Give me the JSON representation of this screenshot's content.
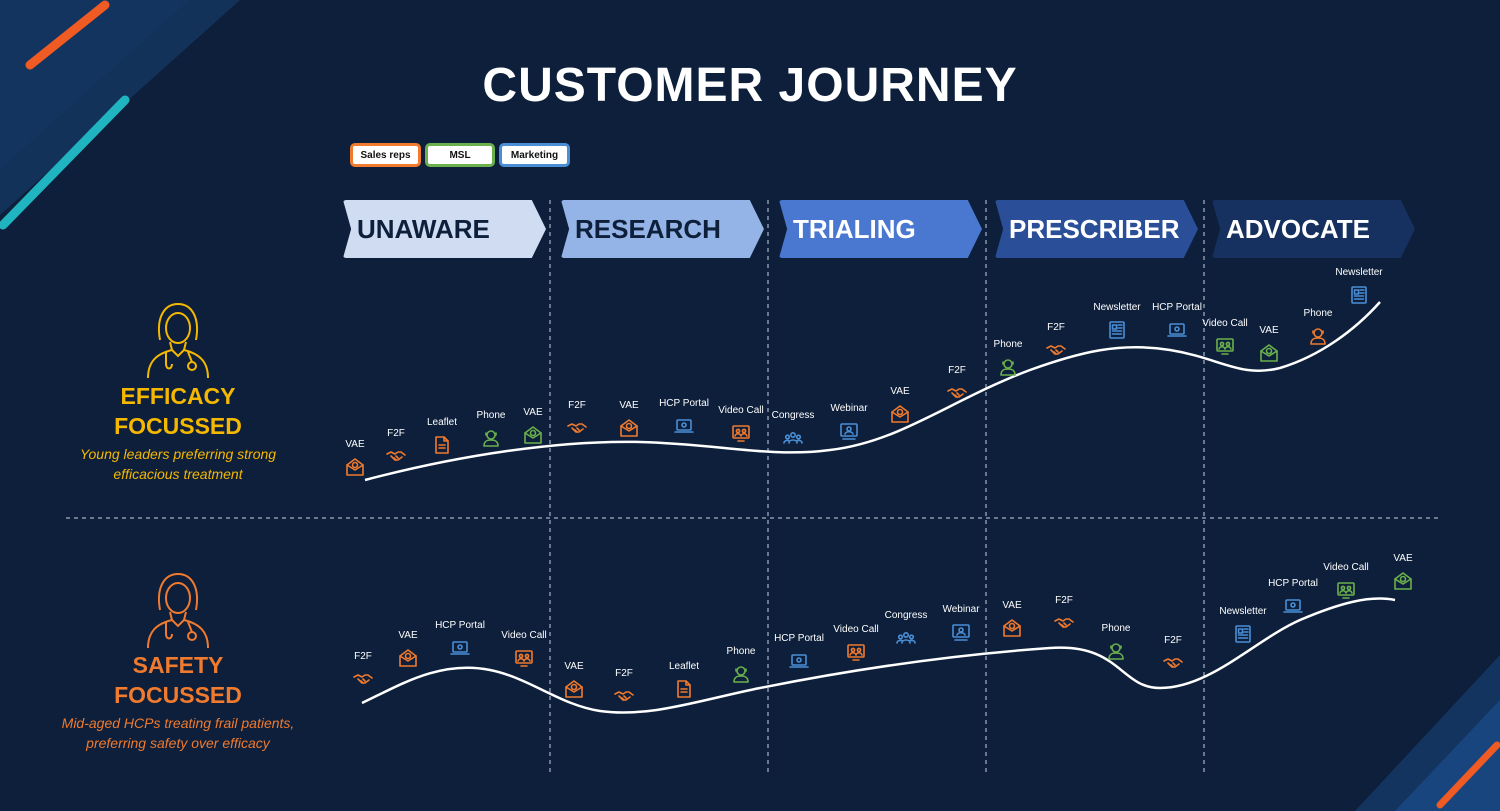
{
  "title": "CUSTOMER JOURNEY",
  "colors": {
    "background": "#0d1f3a",
    "sales_reps": "#f07a2e",
    "msl": "#6ab04c",
    "marketing": "#4a8fd6",
    "efficacy": "#f5b800",
    "safety": "#f07a2e",
    "accent_orange": "#f05a23",
    "accent_teal": "#20b3c0"
  },
  "legend": [
    {
      "label": "Sales reps",
      "color": "#f07a2e"
    },
    {
      "label": "MSL",
      "color": "#6ab04c"
    },
    {
      "label": "Marketing",
      "color": "#4a8fd6"
    }
  ],
  "stages": [
    {
      "label": "UNAWARE",
      "fill": "#cfdcf2",
      "text_color": "#0d1f3a"
    },
    {
      "label": "RESEARCH",
      "fill": "#94b3e6",
      "text_color": "#0d1f3a"
    },
    {
      "label": "TRIALING",
      "fill": "#4a78d0",
      "text_color": "#ffffff"
    },
    {
      "label": "PRESCRIBER",
      "fill": "#2a4f98",
      "text_color": "#ffffff"
    },
    {
      "label": "ADVOCATE",
      "fill": "#16315f",
      "text_color": "#ffffff"
    }
  ],
  "personas": [
    {
      "name_line1": "EFFICACY",
      "name_line2": "FOCUSSED",
      "desc_line1": "Young leaders preferring strong",
      "desc_line2": "efficacious treatment",
      "color": "#f5b800",
      "avatar_icon": "doctor-icon"
    },
    {
      "name_line1": "SAFETY",
      "name_line2": "FOCUSSED",
      "desc_line1": "Mid-aged HCPs treating frail patients,",
      "desc_line2": "preferring safety over efficacy",
      "color": "#f07a2e",
      "avatar_icon": "doctor-icon"
    }
  ],
  "journeys": [
    {
      "persona": "efficacy",
      "touchpoints": [
        {
          "label": "VAE",
          "channel": "sales_reps",
          "icon": "email-icon"
        },
        {
          "label": "F2F",
          "channel": "sales_reps",
          "icon": "handshake-icon"
        },
        {
          "label": "Leaflet",
          "channel": "sales_reps",
          "icon": "document-icon"
        },
        {
          "label": "Phone",
          "channel": "msl",
          "icon": "phone-agent-icon"
        },
        {
          "label": "VAE",
          "channel": "msl",
          "icon": "email-icon"
        },
        {
          "label": "F2F",
          "channel": "sales_reps",
          "icon": "handshake-icon"
        },
        {
          "label": "VAE",
          "channel": "sales_reps",
          "icon": "email-icon"
        },
        {
          "label": "HCP Portal",
          "channel": "marketing",
          "icon": "laptop-icon"
        },
        {
          "label": "Video Call",
          "channel": "sales_reps",
          "icon": "video-call-icon"
        },
        {
          "label": "Congress",
          "channel": "marketing",
          "icon": "group-icon"
        },
        {
          "label": "Webinar",
          "channel": "marketing",
          "icon": "webinar-icon"
        },
        {
          "label": "VAE",
          "channel": "sales_reps",
          "icon": "email-icon"
        },
        {
          "label": "F2F",
          "channel": "sales_reps",
          "icon": "handshake-icon"
        },
        {
          "label": "Phone",
          "channel": "msl",
          "icon": "phone-agent-icon"
        },
        {
          "label": "F2F",
          "channel": "sales_reps",
          "icon": "handshake-icon"
        },
        {
          "label": "Newsletter",
          "channel": "marketing",
          "icon": "newsletter-icon"
        },
        {
          "label": "HCP Portal",
          "channel": "marketing",
          "icon": "laptop-icon"
        },
        {
          "label": "Video Call",
          "channel": "msl",
          "icon": "video-call-icon"
        },
        {
          "label": "VAE",
          "channel": "msl",
          "icon": "email-icon"
        },
        {
          "label": "Phone",
          "channel": "sales_reps",
          "icon": "phone-agent-icon"
        },
        {
          "label": "Newsletter",
          "channel": "marketing",
          "icon": "newsletter-icon"
        }
      ]
    },
    {
      "persona": "safety",
      "touchpoints": [
        {
          "label": "F2F",
          "channel": "sales_reps",
          "icon": "handshake-icon"
        },
        {
          "label": "VAE",
          "channel": "sales_reps",
          "icon": "email-icon"
        },
        {
          "label": "HCP Portal",
          "channel": "marketing",
          "icon": "laptop-icon"
        },
        {
          "label": "Video Call",
          "channel": "sales_reps",
          "icon": "video-call-icon"
        },
        {
          "label": "VAE",
          "channel": "sales_reps",
          "icon": "email-icon"
        },
        {
          "label": "F2F",
          "channel": "sales_reps",
          "icon": "handshake-icon"
        },
        {
          "label": "Leaflet",
          "channel": "sales_reps",
          "icon": "document-icon"
        },
        {
          "label": "Phone",
          "channel": "msl",
          "icon": "phone-agent-icon"
        },
        {
          "label": "HCP Portal",
          "channel": "marketing",
          "icon": "laptop-icon"
        },
        {
          "label": "Video Call",
          "channel": "sales_reps",
          "icon": "video-call-icon"
        },
        {
          "label": "Congress",
          "channel": "marketing",
          "icon": "group-icon"
        },
        {
          "label": "Webinar",
          "channel": "marketing",
          "icon": "webinar-icon"
        },
        {
          "label": "VAE",
          "channel": "sales_reps",
          "icon": "email-icon"
        },
        {
          "label": "F2F",
          "channel": "sales_reps",
          "icon": "handshake-icon"
        },
        {
          "label": "Phone",
          "channel": "msl",
          "icon": "phone-agent-icon"
        },
        {
          "label": "F2F",
          "channel": "sales_reps",
          "icon": "handshake-icon"
        },
        {
          "label": "Newsletter",
          "channel": "marketing",
          "icon": "newsletter-icon"
        },
        {
          "label": "HCP Portal",
          "channel": "marketing",
          "icon": "laptop-icon"
        },
        {
          "label": "Video Call",
          "channel": "msl",
          "icon": "video-call-icon"
        },
        {
          "label": "VAE",
          "channel": "msl",
          "icon": "email-icon"
        }
      ]
    }
  ]
}
